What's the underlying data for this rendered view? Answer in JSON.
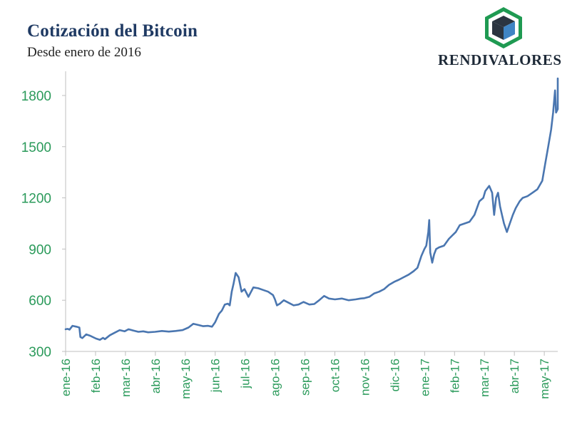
{
  "header": {
    "title": "Cotización del Bitcoin",
    "subtitle": "Desde enero de 2016",
    "logo_text": "RENDIVALORES"
  },
  "colors": {
    "line": "#4a76b0",
    "tick_text": "#2a9a5a",
    "title": "#1f3a63",
    "logo_green": "#1f9a52",
    "logo_dark": "#2b3440",
    "logo_blue": "#3f84c4"
  },
  "chart_data": {
    "type": "line",
    "title": "Cotización del Bitcoin",
    "subtitle": "Desde enero de 2016",
    "xlabel": "",
    "ylabel": "",
    "ylim": [
      300,
      1900
    ],
    "yticks": [
      300,
      600,
      900,
      1200,
      1500,
      1800
    ],
    "x_tick_labels": [
      "ene-16",
      "feb-16",
      "mar-16",
      "abr-16",
      "may-16",
      "jun-16",
      "jul-16",
      "ago-16",
      "sep-16",
      "oct-16",
      "nov-16",
      "dic-16",
      "ene-17",
      "feb-17",
      "mar-17",
      "abr-17",
      "may-17"
    ],
    "grid": false,
    "series": [
      {
        "x": [
          "2016-01-01",
          "2016-01-03",
          "2016-01-05",
          "2016-01-08",
          "2016-01-12",
          "2016-01-15",
          "2016-01-16",
          "2016-01-18",
          "2016-01-22",
          "2016-01-26",
          "2016-02-01",
          "2016-02-05",
          "2016-02-08",
          "2016-02-10",
          "2016-02-15",
          "2016-02-20",
          "2016-02-25",
          "2016-03-01",
          "2016-03-05",
          "2016-03-10",
          "2016-03-15",
          "2016-03-20",
          "2016-03-25",
          "2016-04-01",
          "2016-04-08",
          "2016-04-15",
          "2016-04-22",
          "2016-04-29",
          "2016-05-05",
          "2016-05-10",
          "2016-05-15",
          "2016-05-20",
          "2016-05-25",
          "2016-05-29",
          "2016-06-01",
          "2016-06-05",
          "2016-06-08",
          "2016-06-11",
          "2016-06-14",
          "2016-06-16",
          "2016-06-18",
          "2016-06-20",
          "2016-06-22",
          "2016-06-25",
          "2016-06-28",
          "2016-07-01",
          "2016-07-05",
          "2016-07-10",
          "2016-07-15",
          "2016-07-20",
          "2016-07-25",
          "2016-07-30",
          "2016-08-01",
          "2016-08-03",
          "2016-08-06",
          "2016-08-10",
          "2016-08-15",
          "2016-08-20",
          "2016-08-25",
          "2016-08-30",
          "2016-09-05",
          "2016-09-10",
          "2016-09-15",
          "2016-09-20",
          "2016-09-25",
          "2016-10-01",
          "2016-10-08",
          "2016-10-15",
          "2016-10-22",
          "2016-10-27",
          "2016-10-31",
          "2016-11-05",
          "2016-11-10",
          "2016-11-15",
          "2016-11-20",
          "2016-11-25",
          "2016-12-01",
          "2016-12-05",
          "2016-12-10",
          "2016-12-15",
          "2016-12-20",
          "2016-12-24",
          "2016-12-28",
          "2016-12-31",
          "2017-01-02",
          "2017-01-04",
          "2017-01-05",
          "2017-01-06",
          "2017-01-08",
          "2017-01-10",
          "2017-01-12",
          "2017-01-15",
          "2017-01-20",
          "2017-01-25",
          "2017-02-01",
          "2017-02-05",
          "2017-02-10",
          "2017-02-15",
          "2017-02-20",
          "2017-02-25",
          "2017-03-01",
          "2017-03-03",
          "2017-03-07",
          "2017-03-10",
          "2017-03-12",
          "2017-03-14",
          "2017-03-16",
          "2017-03-18",
          "2017-03-20",
          "2017-03-22",
          "2017-03-25",
          "2017-03-28",
          "2017-03-31",
          "2017-04-03",
          "2017-04-07",
          "2017-04-10",
          "2017-04-15",
          "2017-04-20",
          "2017-04-25",
          "2017-04-30",
          "2017-05-03",
          "2017-05-06",
          "2017-05-09",
          "2017-05-11",
          "2017-05-13",
          "2017-05-14",
          "2017-05-16",
          "2017-05-18",
          "2017-05-20",
          "2017-05-22"
        ],
        "values": [
          430,
          432,
          428,
          450,
          445,
          440,
          385,
          378,
          400,
          392,
          375,
          368,
          380,
          372,
          395,
          410,
          425,
          418,
          430,
          422,
          415,
          418,
          412,
          415,
          420,
          416,
          420,
          425,
          440,
          462,
          455,
          448,
          450,
          445,
          470,
          520,
          540,
          575,
          580,
          570,
          650,
          700,
          760,
          735,
          650,
          665,
          620,
          675,
          670,
          660,
          650,
          630,
          605,
          570,
          580,
          600,
          585,
          570,
          575,
          590,
          575,
          578,
          600,
          625,
          610,
          605,
          610,
          600,
          605,
          610,
          612,
          620,
          640,
          650,
          665,
          690,
          710,
          720,
          735,
          750,
          770,
          790,
          860,
          900,
          920,
          1000,
          1070,
          880,
          820,
          870,
          900,
          910,
          920,
          960,
          1000,
          1040,
          1050,
          1060,
          1100,
          1180,
          1200,
          1240,
          1270,
          1230,
          1100,
          1200,
          1230,
          1150,
          1100,
          1050,
          1000,
          1050,
          1100,
          1140,
          1180,
          1200,
          1210,
          1230,
          1250,
          1300,
          1400,
          1500,
          1600,
          1700,
          1830,
          1700,
          1720,
          1750,
          1850,
          1900
        ]
      }
    ]
  }
}
